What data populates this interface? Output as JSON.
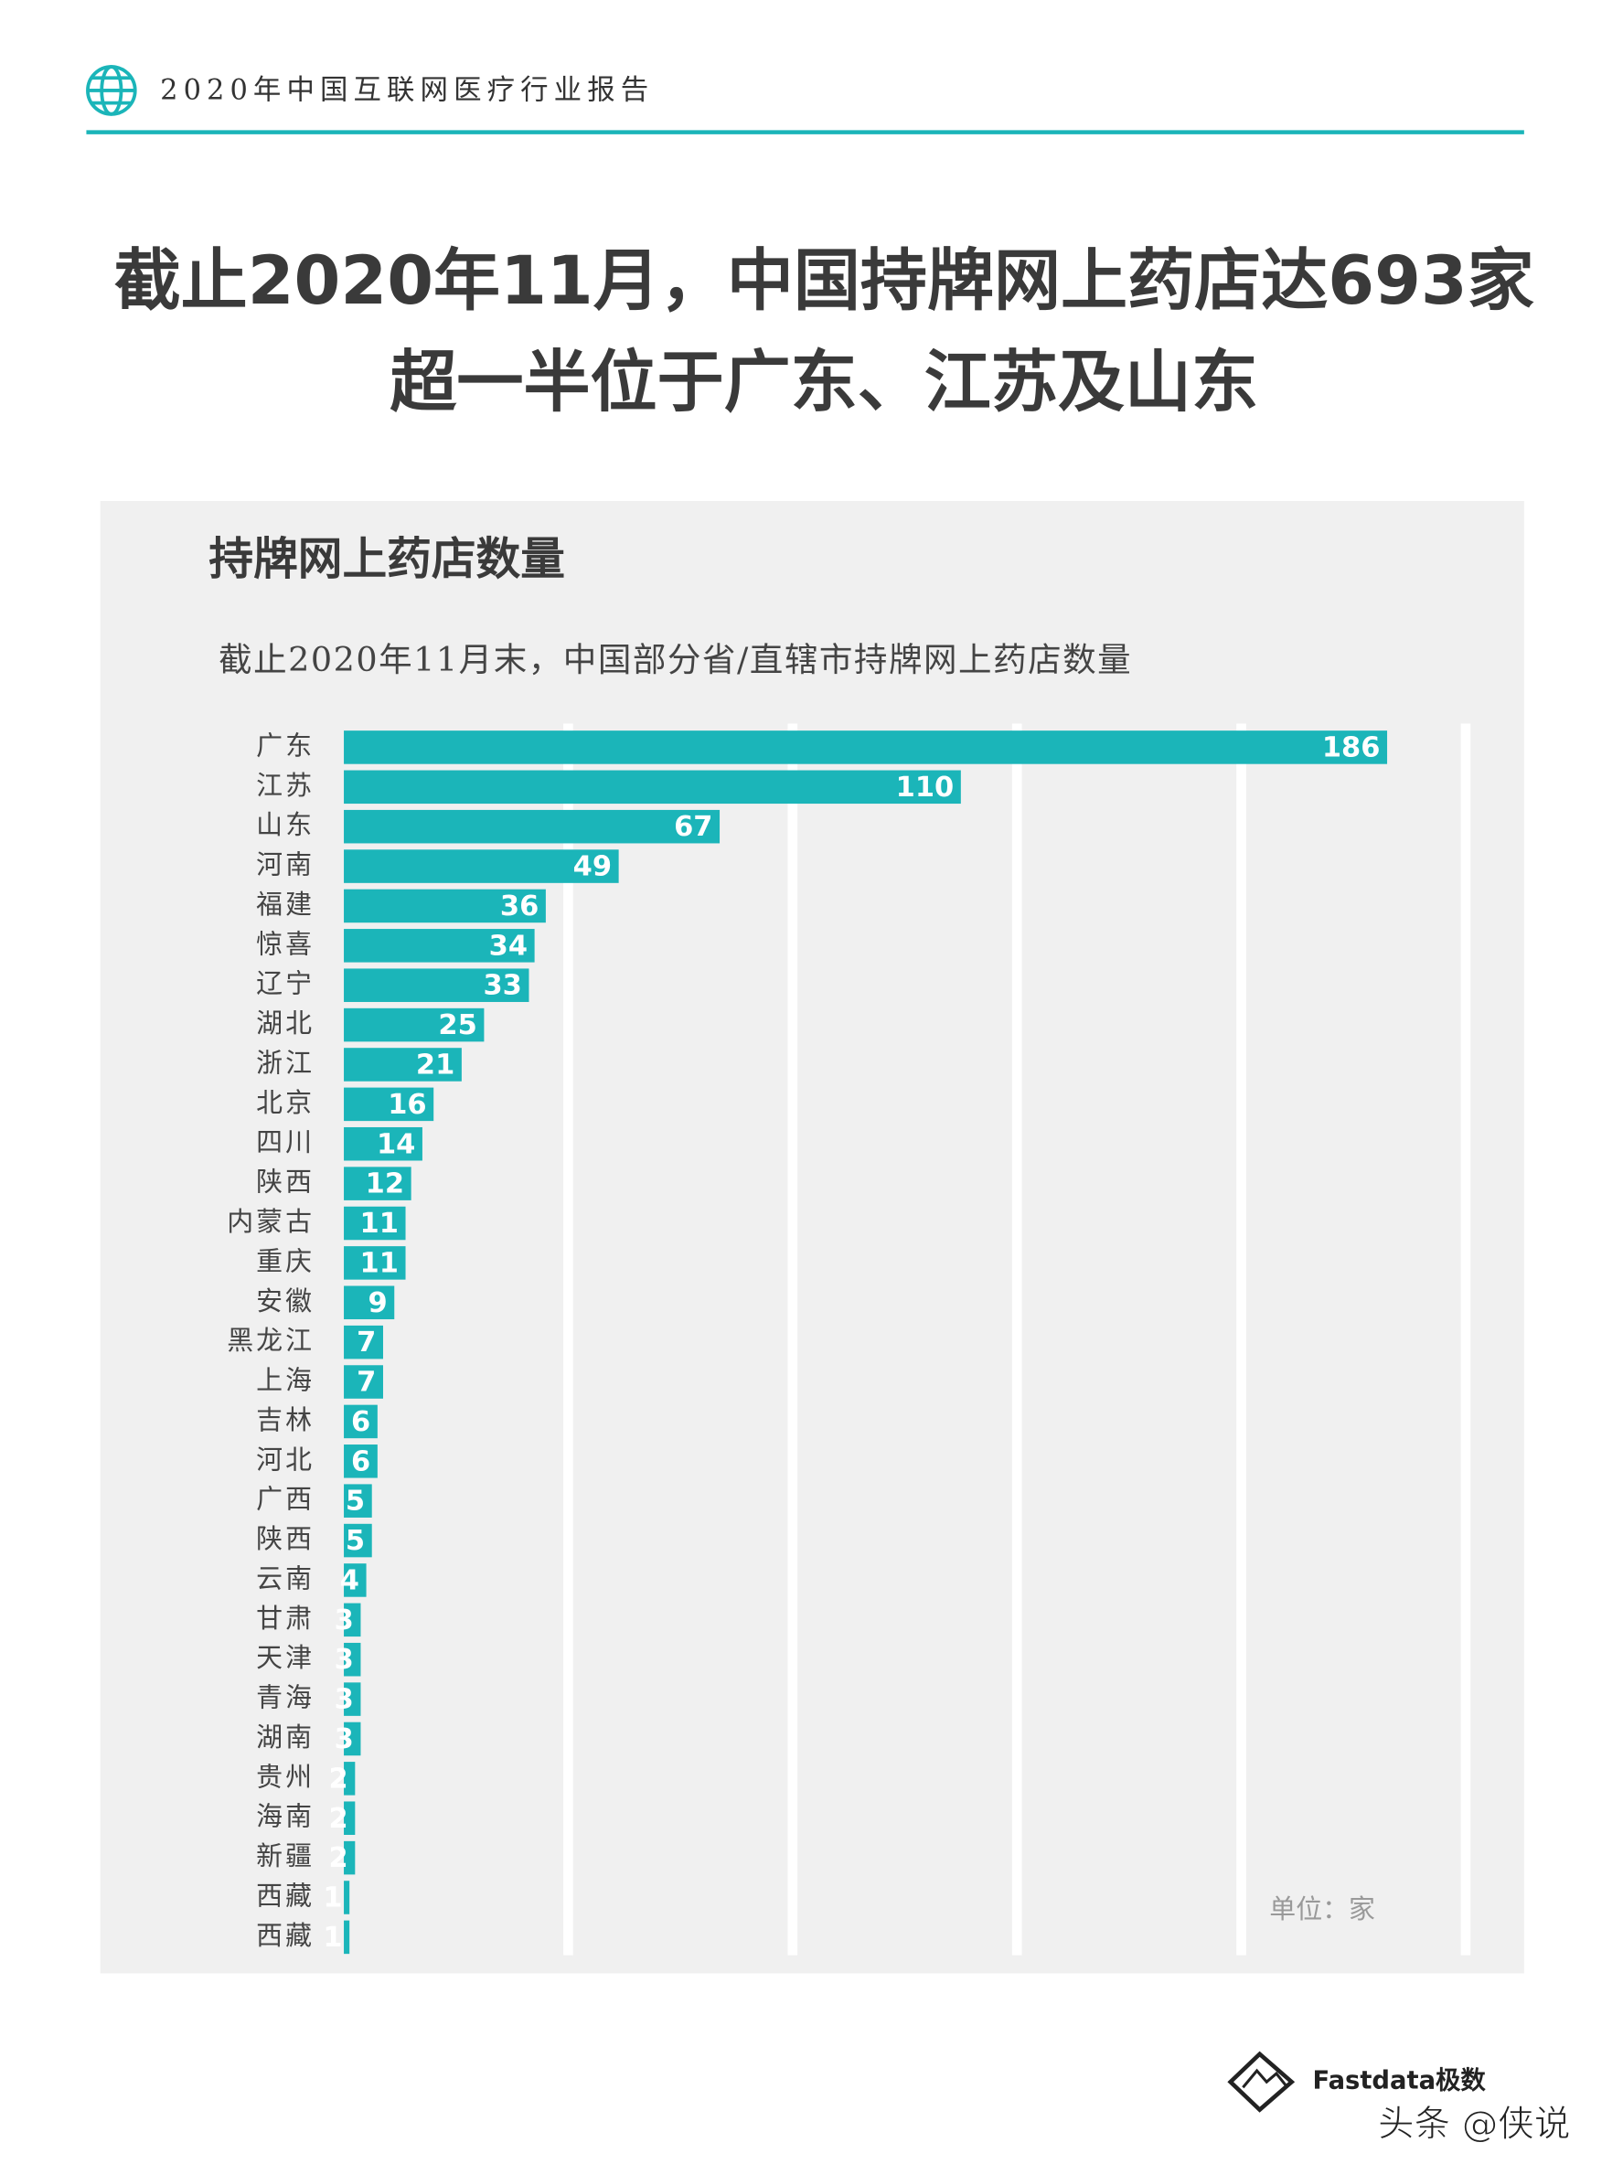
{
  "header": {
    "title": "2020年中国互联网医疗行业报告"
  },
  "page_title": [
    "截止2020年11月，中国持牌网上药店达693家",
    "超一半位于广东、江苏及山东"
  ],
  "chart_data": {
    "type": "bar",
    "orientation": "horizontal",
    "title": "持牌网上药店数量",
    "subtitle": "截止2020年11月末，中国部分省/直辖市持牌网上药店数量",
    "unit": "单位：家",
    "categories": [
      "广东",
      "江苏",
      "山东",
      "河南",
      "福建",
      "惊喜",
      "辽宁",
      "湖北",
      "浙江",
      "北京",
      "四川",
      "陕西",
      "内蒙古",
      "重庆",
      "安徽",
      "黑龙江",
      "上海",
      "吉林",
      "河北",
      "广西",
      "陕西",
      "云南",
      "甘肃",
      "天津",
      "青海",
      "湖南",
      "贵州",
      "海南",
      "新疆",
      "西藏",
      "西藏"
    ],
    "values": [
      186,
      110,
      67,
      49,
      36,
      34,
      33,
      25,
      21,
      16,
      14,
      12,
      11,
      11,
      9,
      7,
      7,
      6,
      6,
      5,
      5,
      4,
      3,
      3,
      3,
      3,
      2,
      2,
      2,
      1,
      1
    ],
    "color": "#1bb5b9",
    "xlim": [
      0,
      200
    ],
    "xticks": [
      0,
      40,
      80,
      120,
      160,
      200
    ],
    "grid": true
  },
  "footer": {
    "brand": "Fastdata极数",
    "watermark": "头条 @侠说"
  }
}
